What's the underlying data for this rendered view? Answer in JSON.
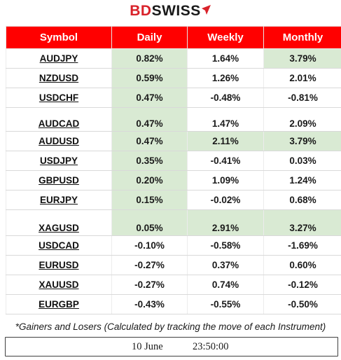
{
  "brand": {
    "part1": "BD",
    "part2": "SWISS",
    "colors": {
      "accent": "#d9222a",
      "dark": "#1a1a1a"
    }
  },
  "table": {
    "headers": [
      "Symbol",
      "Daily",
      "Weekly",
      "Monthly"
    ],
    "header_bg": "#ff0000",
    "highlight_color": "#d9ead3",
    "rows": [
      {
        "symbol": "AUDJPY",
        "daily": "0.82%",
        "weekly": "1.64%",
        "monthly": "3.79%"
      },
      {
        "symbol": "NZDUSD",
        "daily": "0.59%",
        "weekly": "1.26%",
        "monthly": "2.01%"
      },
      {
        "symbol": "USDCHF",
        "daily": "0.47%",
        "weekly": "-0.48%",
        "monthly": "-0.81%"
      },
      {
        "symbol": "AUDCAD",
        "daily": "0.47%",
        "weekly": "1.47%",
        "monthly": "2.09%"
      },
      {
        "symbol": "AUDUSD",
        "daily": "0.47%",
        "weekly": "2.11%",
        "monthly": "3.79%"
      },
      {
        "symbol": "USDJPY",
        "daily": "0.35%",
        "weekly": "-0.41%",
        "monthly": "0.03%"
      },
      {
        "symbol": "GBPUSD",
        "daily": "0.20%",
        "weekly": "1.09%",
        "monthly": "1.24%"
      },
      {
        "symbol": "EURJPY",
        "daily": "0.15%",
        "weekly": "-0.02%",
        "monthly": "0.68%"
      },
      {
        "symbol": "XAGUSD",
        "daily": "0.05%",
        "weekly": "2.91%",
        "monthly": "3.27%"
      },
      {
        "symbol": "USDCAD",
        "daily": "-0.10%",
        "weekly": "-0.58%",
        "monthly": "-1.69%"
      },
      {
        "symbol": "EURUSD",
        "daily": "-0.27%",
        "weekly": "0.37%",
        "monthly": "0.60%"
      },
      {
        "symbol": "XAUUSD",
        "daily": "-0.27%",
        "weekly": "0.74%",
        "monthly": "-0.12%"
      },
      {
        "symbol": "EURGBP",
        "daily": "-0.43%",
        "weekly": "-0.55%",
        "monthly": "-0.50%"
      }
    ]
  },
  "footnote": "*Gainers and Losers (Calculated by tracking the move of each Instrument)",
  "timestamp": {
    "date": "10 June",
    "time": "23:50:00"
  }
}
